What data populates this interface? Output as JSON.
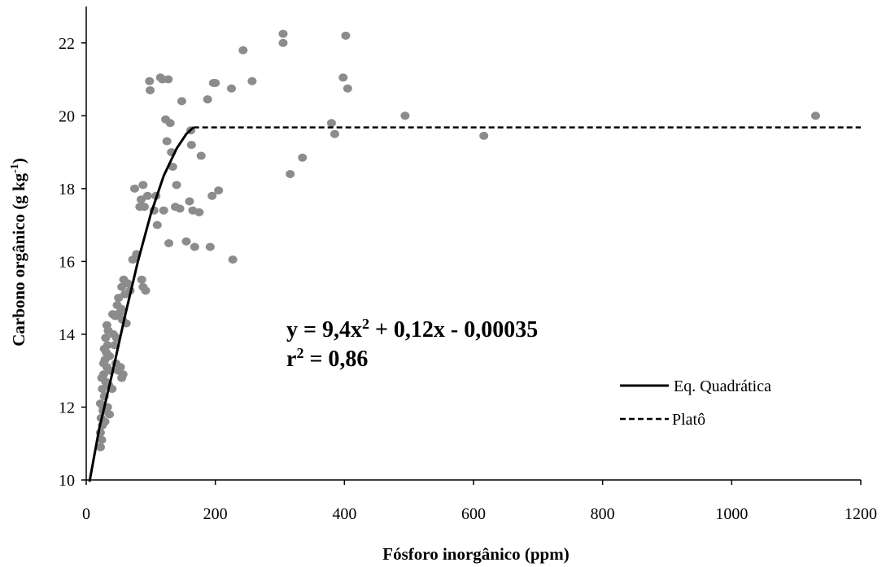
{
  "chart_data": {
    "type": "scatter",
    "xlabel": "Fósforo inorgânico (ppm)",
    "ylabel_main": "Carbono orgânico (g kg",
    "ylabel_sup": "-1",
    "ylabel_close": ")",
    "xlim": [
      0,
      1200
    ],
    "ylim": [
      10,
      23
    ],
    "xticks": [
      0,
      200,
      400,
      600,
      800,
      1000,
      1200
    ],
    "yticks": [
      10,
      12,
      14,
      16,
      18,
      20,
      22
    ],
    "grid": false,
    "equation": {
      "line1_a": "y = 9,4x",
      "line1_sup": "2",
      "line1_b": " + 0,12x - 0,00035",
      "line2_a": "r",
      "line2_sup": "2",
      "line2_b": " = 0,86"
    },
    "legend_position": "bottom-right",
    "legend": [
      {
        "label": "Eq. Quadrática",
        "style": "solid"
      },
      {
        "label": "Platô",
        "style": "dashed"
      }
    ],
    "plateau_y": 19.68,
    "plateau_x_start": 166,
    "curve": [
      [
        5,
        9.95
      ],
      [
        20,
        11.4
      ],
      [
        40,
        12.9
      ],
      [
        60,
        14.5
      ],
      [
        80,
        16.0
      ],
      [
        100,
        17.3
      ],
      [
        120,
        18.35
      ],
      [
        140,
        19.1
      ],
      [
        155,
        19.5
      ],
      [
        166,
        19.68
      ]
    ],
    "colors": {
      "points": "#8c8c8c",
      "lines": "#000000"
    },
    "points": [
      [
        22,
        10.9
      ],
      [
        24,
        11.1
      ],
      [
        22,
        11.3
      ],
      [
        25,
        11.5
      ],
      [
        23,
        11.7
      ],
      [
        26,
        11.9
      ],
      [
        22,
        12.1
      ],
      [
        28,
        12.3
      ],
      [
        25,
        12.5
      ],
      [
        30,
        12.7
      ],
      [
        27,
        12.9
      ],
      [
        32,
        13.1
      ],
      [
        29,
        13.3
      ],
      [
        31,
        13.5
      ],
      [
        33,
        13.7
      ],
      [
        30,
        13.9
      ],
      [
        34,
        14.1
      ],
      [
        32,
        14.25
      ],
      [
        28,
        13.6
      ],
      [
        27,
        13.2
      ],
      [
        24,
        12.8
      ],
      [
        26,
        12.0
      ],
      [
        29,
        11.6
      ],
      [
        35,
        12.6
      ],
      [
        38,
        13.0
      ],
      [
        40,
        12.5
      ],
      [
        36,
        13.4
      ],
      [
        42,
        14.0
      ],
      [
        45,
        14.5
      ],
      [
        48,
        14.8
      ],
      [
        50,
        15.0
      ],
      [
        52,
        14.6
      ],
      [
        55,
        15.3
      ],
      [
        58,
        15.5
      ],
      [
        60,
        15.1
      ],
      [
        56,
        14.4
      ],
      [
        53,
        13.1
      ],
      [
        55,
        12.8
      ],
      [
        57,
        12.9
      ],
      [
        50,
        13.0
      ],
      [
        46,
        13.2
      ],
      [
        44,
        13.7
      ],
      [
        47,
        13.9
      ],
      [
        54,
        14.7
      ],
      [
        62,
        14.3
      ],
      [
        64,
        15.4
      ],
      [
        72,
        16.05
      ],
      [
        75,
        18.0
      ],
      [
        83,
        17.5
      ],
      [
        85,
        17.7
      ],
      [
        88,
        18.1
      ],
      [
        90,
        17.5
      ],
      [
        92,
        15.2
      ],
      [
        95,
        17.8
      ],
      [
        98,
        20.95
      ],
      [
        99,
        20.7
      ],
      [
        105,
        17.4
      ],
      [
        108,
        17.8
      ],
      [
        110,
        17.0
      ],
      [
        115,
        21.05
      ],
      [
        118,
        21.0
      ],
      [
        120,
        17.4
      ],
      [
        123,
        19.9
      ],
      [
        125,
        19.3
      ],
      [
        127,
        21.0
      ],
      [
        128,
        16.5
      ],
      [
        130,
        19.8
      ],
      [
        132,
        19.0
      ],
      [
        134,
        18.6
      ],
      [
        138,
        17.5
      ],
      [
        140,
        18.1
      ],
      [
        145,
        17.45
      ],
      [
        148,
        20.4
      ],
      [
        155,
        16.55
      ],
      [
        160,
        17.65
      ],
      [
        162,
        19.6
      ],
      [
        163,
        19.2
      ],
      [
        165,
        17.4
      ],
      [
        168,
        16.4
      ],
      [
        175,
        17.35
      ],
      [
        178,
        18.9
      ],
      [
        188,
        20.45
      ],
      [
        192,
        16.4
      ],
      [
        195,
        17.8
      ],
      [
        197,
        20.9
      ],
      [
        200,
        20.9
      ],
      [
        205,
        17.95
      ],
      [
        225,
        20.75
      ],
      [
        227,
        16.05
      ],
      [
        243,
        21.8
      ],
      [
        257,
        20.95
      ],
      [
        305,
        22.25
      ],
      [
        305,
        22.0
      ],
      [
        316,
        18.4
      ],
      [
        335,
        18.85
      ],
      [
        380,
        19.8
      ],
      [
        385,
        19.5
      ],
      [
        398,
        21.05
      ],
      [
        402,
        22.2
      ],
      [
        405,
        20.75
      ],
      [
        494,
        20.0
      ],
      [
        616,
        19.45
      ],
      [
        1130,
        20.0
      ],
      [
        86,
        15.5
      ],
      [
        88,
        15.3
      ],
      [
        78,
        16.2
      ],
      [
        68,
        15.2
      ],
      [
        41,
        14.55
      ],
      [
        33,
        12.0
      ],
      [
        36,
        11.8
      ]
    ]
  }
}
